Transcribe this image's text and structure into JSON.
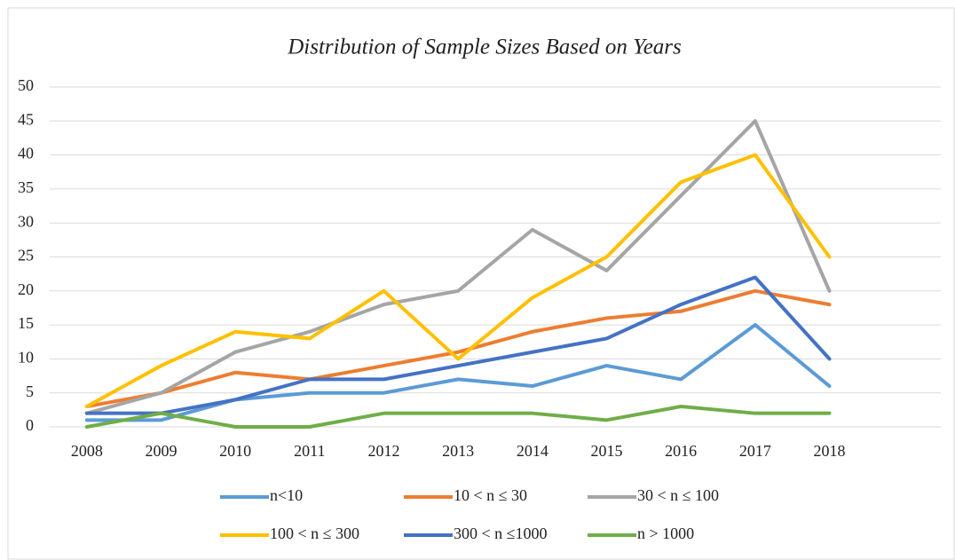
{
  "chart_data": {
    "type": "line",
    "title": "Distribution of Sample Sizes Based on Years",
    "categories": [
      "2008",
      "2009",
      "2010",
      "2011",
      "2012",
      "2013",
      "2014",
      "2015",
      "2016",
      "2017",
      "2018",
      null
    ],
    "series": [
      {
        "name": "n<10",
        "color": "#5b9bd5",
        "values": [
          1,
          1,
          4,
          5,
          5,
          7,
          6,
          9,
          7,
          15,
          6,
          null
        ]
      },
      {
        "name": "10 < n ≤ 30",
        "color": "#ed7d31",
        "values": [
          3,
          5,
          8,
          7,
          9,
          11,
          14,
          16,
          17,
          20,
          18,
          null
        ]
      },
      {
        "name": "30 < n ≤ 100",
        "color": "#a5a5a5",
        "values": [
          2,
          5,
          11,
          14,
          18,
          20,
          29,
          23,
          34,
          45,
          20,
          null
        ]
      },
      {
        "name": "100 < n ≤ 300",
        "color": "#ffc000",
        "values": [
          3,
          9,
          14,
          13,
          20,
          10,
          19,
          25,
          36,
          40,
          25,
          null
        ]
      },
      {
        "name": "300 < n ≤1000",
        "color": "#4472c4",
        "values": [
          2,
          2,
          4,
          7,
          7,
          9,
          11,
          13,
          18,
          22,
          10,
          null
        ]
      },
      {
        "name": "n > 1000",
        "color": "#70ad47",
        "values": [
          0,
          2,
          0,
          0,
          2,
          2,
          2,
          1,
          3,
          2,
          2,
          null
        ]
      }
    ],
    "ylim": [
      0,
      50
    ],
    "yticks": [
      0,
      5,
      10,
      15,
      20,
      25,
      30,
      35,
      40,
      45,
      50
    ],
    "grid": true,
    "legend": "bottom"
  }
}
